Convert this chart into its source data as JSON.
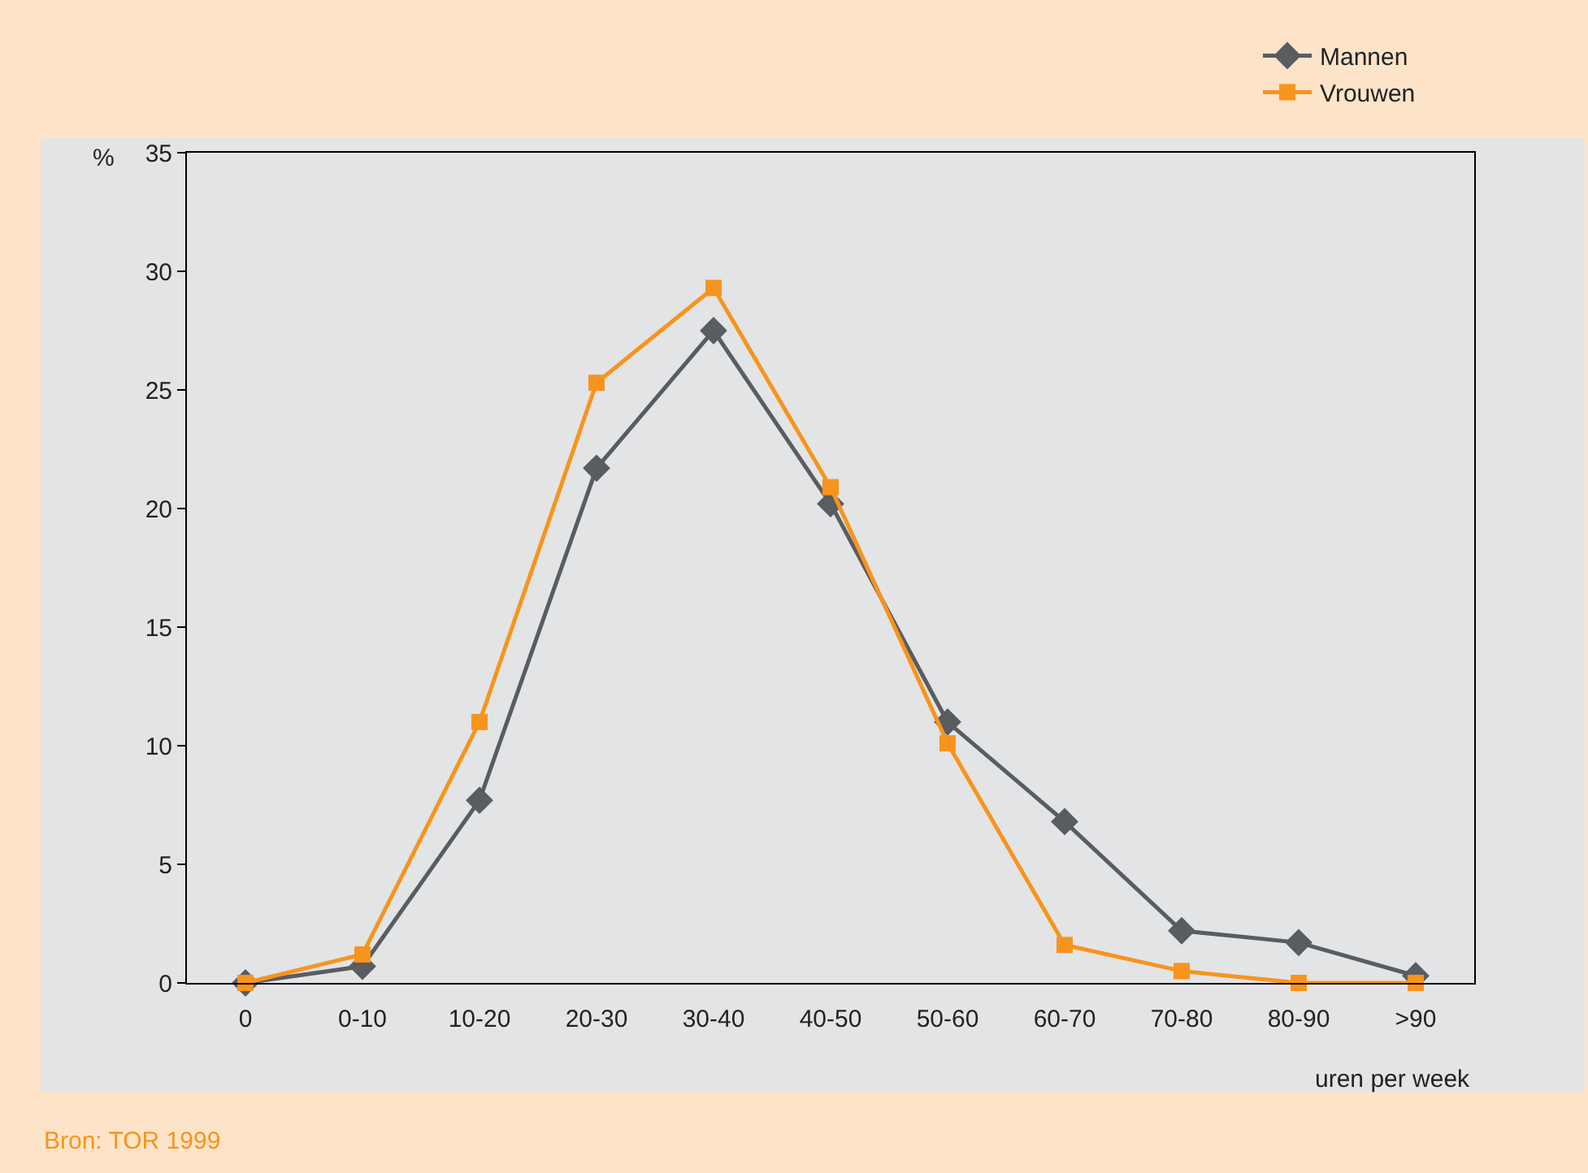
{
  "chart_data": {
    "type": "line",
    "xlabel": "uren per week",
    "ylabel": "%",
    "categories": [
      "0",
      "0-10",
      "10-20",
      "20-30",
      "30-40",
      "40-50",
      "50-60",
      "60-70",
      "70-80",
      "80-90",
      ">90"
    ],
    "series": [
      {
        "name": "Mannen",
        "color": "#595c61",
        "marker": "diamond",
        "values": [
          0,
          0.7,
          7.7,
          21.7,
          27.5,
          20.2,
          11.0,
          6.8,
          2.2,
          1.7,
          0.3
        ]
      },
      {
        "name": "Vrouwen",
        "color": "#f7941d",
        "marker": "square",
        "values": [
          0,
          1.2,
          11.0,
          25.3,
          29.3,
          20.9,
          10.1,
          1.6,
          0.5,
          0,
          0
        ]
      }
    ],
    "ylim": [
      0,
      35
    ],
    "yticks": [
      0,
      5,
      10,
      15,
      20,
      25,
      30,
      35
    ],
    "grid": false,
    "legend": "top right",
    "line_style": "solid",
    "annotations": [
      "Bron: TOR 1999"
    ]
  }
}
